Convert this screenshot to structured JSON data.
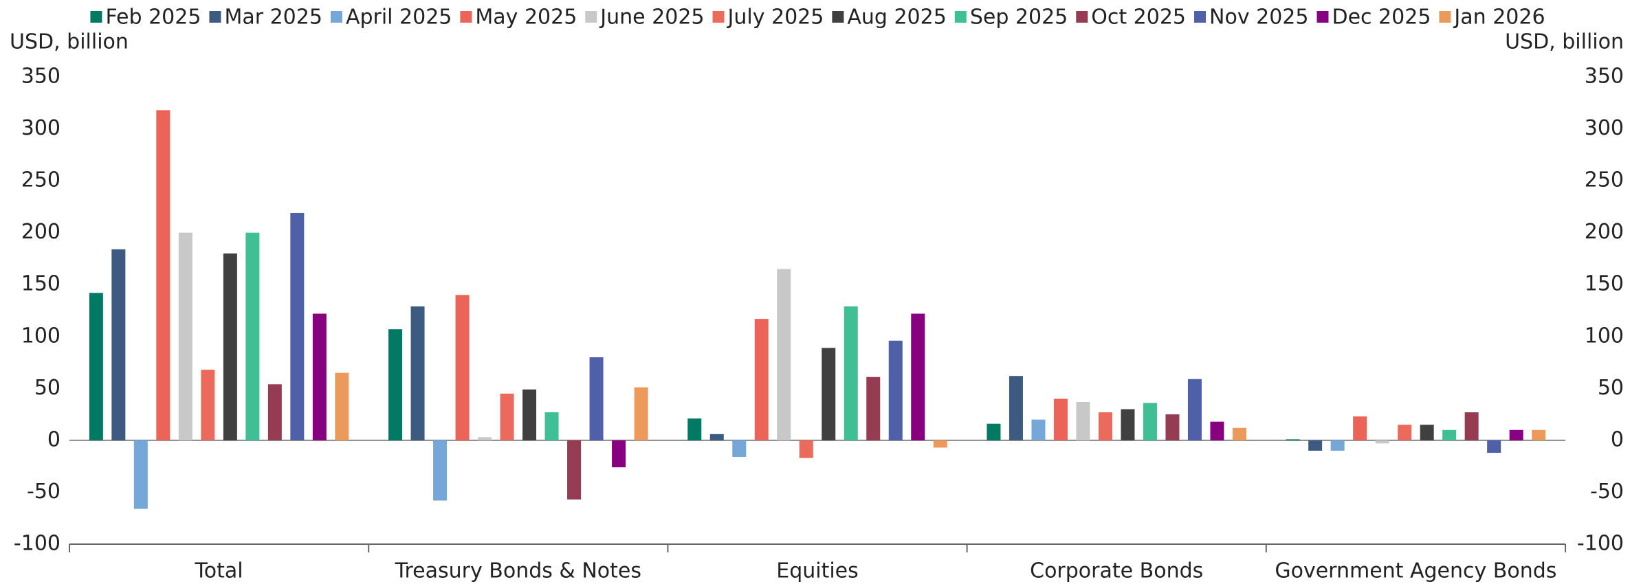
{
  "chart_data": {
    "type": "bar",
    "y_label": "USD, billion",
    "y2_label": "USD, billion",
    "categories": [
      "Total",
      "Treasury Bonds & Notes",
      "Equities",
      "Corporate Bonds",
      "Government Agency Bonds"
    ],
    "series": [
      {
        "name": "Feb 2025",
        "color": "#007a62",
        "values": [
          142,
          107,
          21,
          16,
          1
        ]
      },
      {
        "name": "Mar 2025",
        "color": "#3d5a80",
        "values": [
          184,
          129,
          6,
          62,
          -10
        ]
      },
      {
        "name": "April 2025",
        "color": "#75a7d9",
        "values": [
          -66,
          -58,
          -16,
          20,
          -10
        ]
      },
      {
        "name": "May 2025",
        "color": "#eb6457",
        "values": [
          318,
          140,
          117,
          40,
          23
        ]
      },
      {
        "name": "June 2025",
        "color": "#c8c8c8",
        "values": [
          200,
          3,
          165,
          37,
          -3
        ]
      },
      {
        "name": "July 2025",
        "color": "#ec6a5c",
        "values": [
          68,
          45,
          -17,
          27,
          15
        ]
      },
      {
        "name": "Aug 2025",
        "color": "#404040",
        "values": [
          180,
          49,
          89,
          30,
          15
        ]
      },
      {
        "name": "Sep 2025",
        "color": "#3fbf94",
        "values": [
          200,
          27,
          129,
          36,
          10
        ]
      },
      {
        "name": "Oct 2025",
        "color": "#963c52",
        "values": [
          54,
          -57,
          61,
          25,
          27
        ]
      },
      {
        "name": "Nov 2025",
        "color": "#4f5fa8",
        "values": [
          219,
          80,
          96,
          59,
          -12
        ]
      },
      {
        "name": "Dec 2025",
        "color": "#87007f",
        "values": [
          122,
          -26,
          122,
          18,
          10
        ]
      },
      {
        "name": "Jan 2026",
        "color": "#eb9a5c",
        "values": [
          65,
          51,
          -7,
          12,
          10
        ]
      }
    ],
    "ylim": [
      -100,
      350
    ],
    "yticks": [
      -100,
      -50,
      0,
      50,
      100,
      150,
      200,
      250,
      300,
      350
    ],
    "y2lim": [
      -100,
      350
    ],
    "y2ticks": [
      -100,
      -50,
      0,
      50,
      100,
      150,
      200,
      250,
      300,
      350
    ],
    "legend": "top"
  }
}
